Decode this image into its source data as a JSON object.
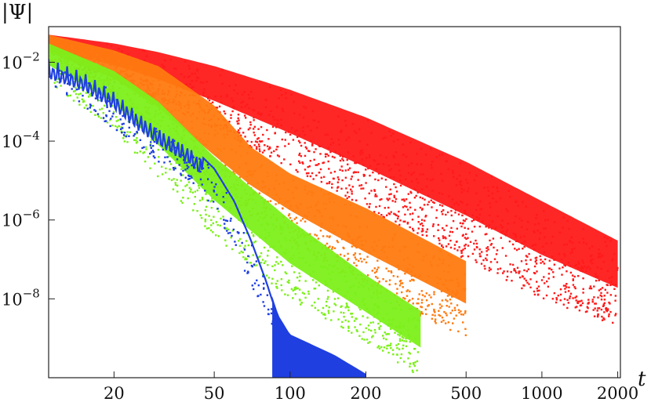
{
  "chart_data": {
    "type": "scatter",
    "title": "",
    "xlabel": "t",
    "ylabel": "|Ψ|",
    "x_scale": "log",
    "y_scale": "log",
    "xlim": [
      11,
      2050
    ],
    "ylim": [
      1e-10,
      0.08
    ],
    "grid": false,
    "x_ticks": [
      {
        "value": 20,
        "label": "20"
      },
      {
        "value": 50,
        "label": "50"
      },
      {
        "value": 100,
        "label": "100"
      },
      {
        "value": 200,
        "label": "200"
      },
      {
        "value": 500,
        "label": "500"
      },
      {
        "value": 1000,
        "label": "1000"
      },
      {
        "value": 2000,
        "label": "2000"
      }
    ],
    "y_ticks": [
      {
        "value": 0.01,
        "base": "10",
        "exp": "−2"
      },
      {
        "value": 0.0001,
        "base": "10",
        "exp": "−4"
      },
      {
        "value": 1e-06,
        "base": "10",
        "exp": "−6"
      },
      {
        "value": 1e-08,
        "base": "10",
        "exp": "−8"
      }
    ],
    "series": [
      {
        "color": "#ff1a1a",
        "x": [
          11,
          20,
          30,
          50,
          100,
          200,
          500,
          1000,
          2000
        ],
        "y_upper": [
          0.05,
          0.03,
          0.018,
          0.008,
          0.002,
          0.0004,
          3e-05,
          3e-06,
          3e-07
        ],
        "y_lower": [
          0.01,
          0.003,
          0.001,
          0.0002,
          2e-05,
          2e-06,
          1e-07,
          1e-08,
          2e-09
        ],
        "t_end": 2000
      },
      {
        "color": "#ff7a10",
        "x": [
          11,
          20,
          30,
          50,
          70,
          100,
          200,
          500
        ],
        "y_upper": [
          0.05,
          0.02,
          0.008,
          0.0008,
          7e-05,
          1.5e-05,
          2e-06,
          9e-08
        ],
        "y_lower": [
          0.008,
          0.001,
          0.0001,
          4e-06,
          1.2e-06,
          3e-07,
          1.8e-08,
          1e-09
        ],
        "t_end": 500
      },
      {
        "color": "#7cf01a",
        "x": [
          11,
          20,
          30,
          50,
          100,
          200,
          330
        ],
        "y_upper": [
          0.03,
          0.006,
          0.001,
          4e-05,
          1e-06,
          4e-08,
          5e-09
        ],
        "y_lower": [
          0.003,
          0.0002,
          1e-05,
          4e-07,
          1e-08,
          8e-10,
          1e-10
        ],
        "t_end": 330
      },
      {
        "color": "#1f3fe0",
        "x": [
          11,
          15,
          20,
          25,
          30,
          40,
          50,
          60,
          70,
          80,
          90,
          100,
          150,
          200
        ],
        "y_line": [
          0.012,
          0.006,
          0.002,
          0.0006,
          0.00025,
          8e-05,
          2e-05,
          3e-06,
          3e-07,
          3e-08,
          3e-09,
          1e-09,
          3e-10,
          1e-10
        ],
        "y_lower": [
          0.003,
          0.0008,
          0.0002,
          8e-05,
          3e-05,
          1e-05,
          2e-06,
          2e-07,
          2e-08,
          5e-09,
          1e-09,
          3e-10,
          1e-10,
          1e-10
        ],
        "t_end": 200
      }
    ]
  }
}
